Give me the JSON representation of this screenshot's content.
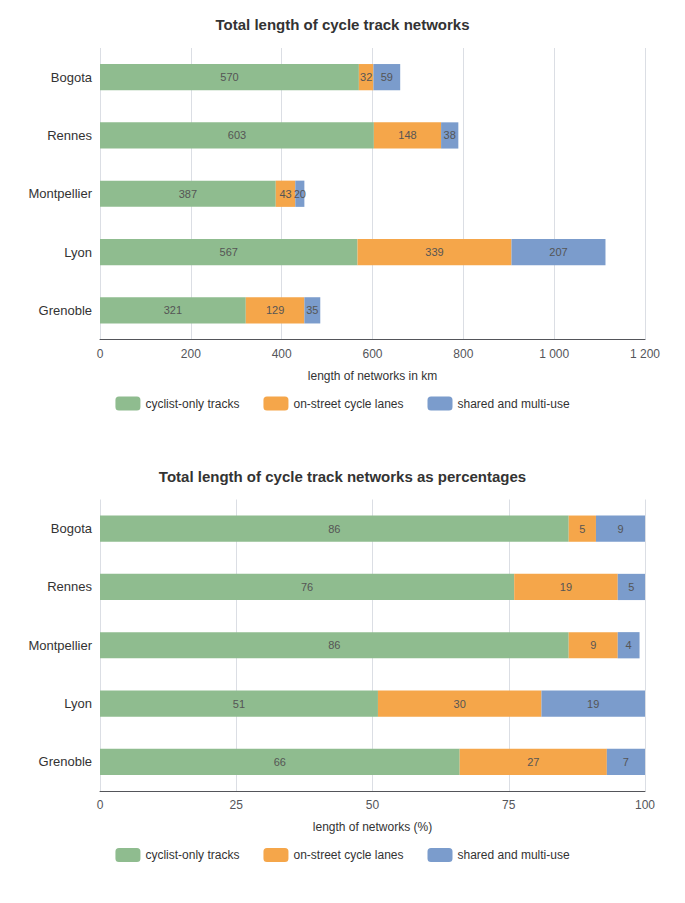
{
  "chart_data": [
    {
      "type": "bar",
      "title": "Total length of cycle track networks",
      "orientation": "horizontal",
      "stacked": true,
      "data_labels": true,
      "grid": true,
      "legend": "bottom",
      "categories": [
        "Grenoble",
        "Lyon",
        "Montpellier",
        "Rennes",
        "Bogota"
      ],
      "series": [
        {
          "name": "cyclist-only tracks",
          "color": "#8fbc8f",
          "values": [
            321,
            567,
            387,
            603,
            570
          ]
        },
        {
          "name": "on-street cycle lanes",
          "color": "#f5a64a",
          "values": [
            129,
            339,
            43,
            148,
            32
          ]
        },
        {
          "name": "shared and multi-use",
          "color": "#7b9ccc",
          "values": [
            35,
            207,
            20,
            38,
            59
          ]
        }
      ],
      "xlabel": "length of networks in km",
      "xlim": [
        0,
        1200
      ],
      "xticks": [
        0,
        200,
        400,
        600,
        800,
        {
          "value": 1000,
          "label": "1 000"
        },
        {
          "value": 1200,
          "label": "1 200"
        }
      ]
    },
    {
      "type": "bar",
      "title": "Total length of cycle track networks as percentages",
      "orientation": "horizontal",
      "stacked": true,
      "data_labels": true,
      "grid": true,
      "legend": "bottom",
      "categories": [
        "Grenoble",
        "Lyon",
        "Montpellier",
        "Rennes",
        "Bogota"
      ],
      "series": [
        {
          "name": "cyclist-only tracks",
          "color": "#8fbc8f",
          "values": [
            66,
            51,
            86,
            76,
            86
          ]
        },
        {
          "name": "on-street cycle lanes",
          "color": "#f5a64a",
          "values": [
            27,
            30,
            9,
            19,
            5
          ]
        },
        {
          "name": "shared and multi-use",
          "color": "#7b9ccc",
          "values": [
            7,
            19,
            4,
            5,
            9
          ]
        }
      ],
      "xlabel": "length of networks (%)",
      "xlim": [
        0,
        100
      ],
      "xticks": [
        0,
        25,
        50,
        75,
        100
      ]
    }
  ]
}
